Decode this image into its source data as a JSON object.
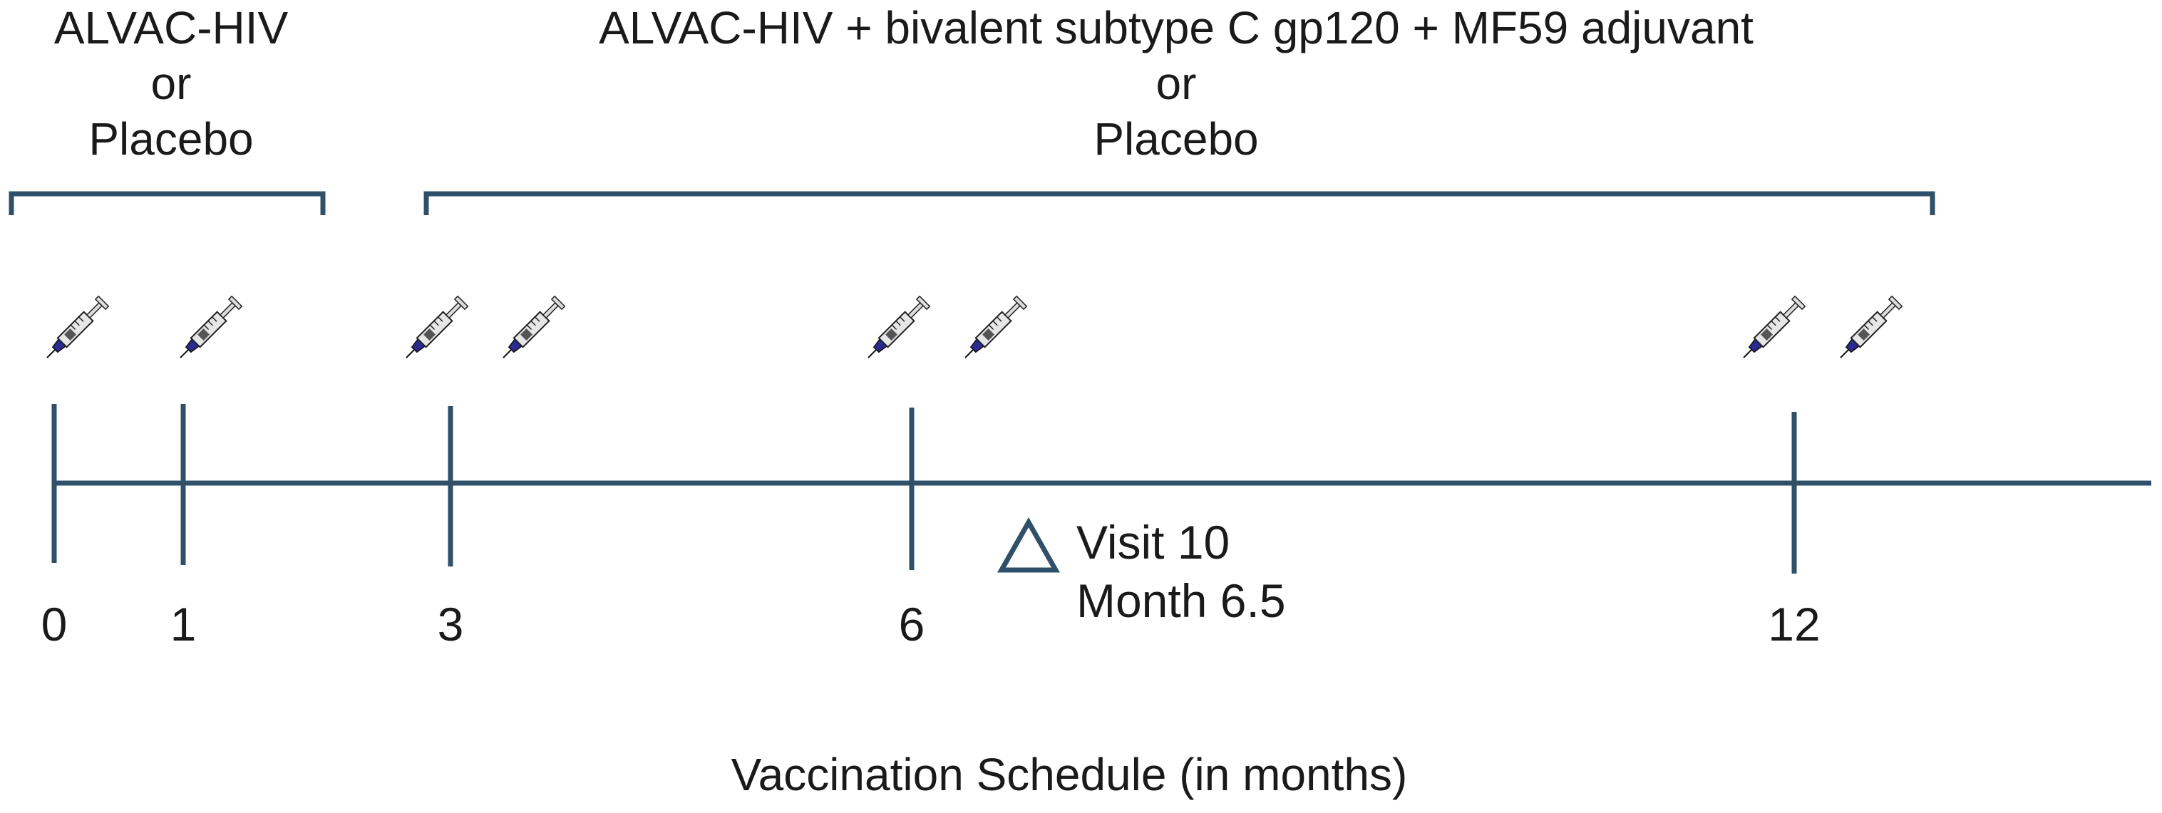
{
  "groups": [
    {
      "line1": "ALVAC-HIV",
      "line2": "or",
      "line3": "Placebo"
    },
    {
      "line1": "ALVAC-HIV + bivalent subtype C gp120 + MF59 adjuvant",
      "line2": "or",
      "line3": "Placebo"
    }
  ],
  "timeline": {
    "ticks": [
      {
        "month": 0,
        "label": "0"
      },
      {
        "month": 1,
        "label": "1"
      },
      {
        "month": 3,
        "label": "3"
      },
      {
        "month": 6,
        "label": "6"
      },
      {
        "month": 12,
        "label": "12"
      }
    ]
  },
  "injections": [
    {
      "month": 0,
      "count": 1
    },
    {
      "month": 1,
      "count": 1
    },
    {
      "month": 3,
      "count": 2
    },
    {
      "month": 6,
      "count": 2
    },
    {
      "month": 12,
      "count": 2
    }
  ],
  "visit": {
    "line1": "Visit 10",
    "line2": "Month 6.5",
    "month": 6.5,
    "icon": "triangle-outline-icon"
  },
  "caption": "Vaccination Schedule (in months)",
  "colors": {
    "line": "#2f5068",
    "needle": "#2b2a8f",
    "syringe_body": "#e6e6e6"
  }
}
